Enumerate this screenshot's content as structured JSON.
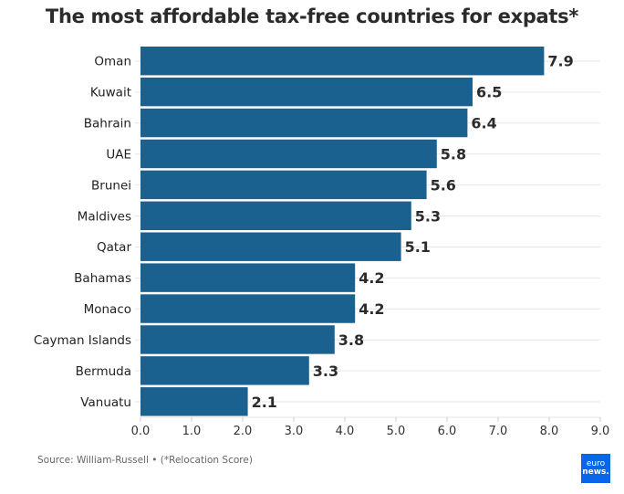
{
  "chart_data": {
    "type": "bar",
    "orientation": "horizontal",
    "title": "The most affordable tax-free countries for expats*",
    "categories": [
      "Oman",
      "Kuwait",
      "Bahrain",
      "UAE",
      "Brunei",
      "Maldives",
      "Qatar",
      "Bahamas",
      "Monaco",
      "Cayman Islands",
      "Bermuda",
      "Vanuatu"
    ],
    "values": [
      7.9,
      6.5,
      6.4,
      5.8,
      5.6,
      5.3,
      5.1,
      4.2,
      4.2,
      3.8,
      3.3,
      2.1
    ],
    "data_labels": [
      "7.9",
      "6.5",
      "6.4",
      "5.8",
      "5.6",
      "5.3",
      "5.1",
      "4.2",
      "4.2",
      "3.8",
      "3.3",
      "2.1"
    ],
    "xlabel": "",
    "ylabel": "",
    "xlim": [
      0,
      9
    ],
    "xticks": [
      "0.0",
      "1.0",
      "2.0",
      "3.0",
      "4.0",
      "5.0",
      "6.0",
      "7.0",
      "8.0",
      "9.0"
    ],
    "grid": true,
    "bar_color": "#1b6190"
  },
  "footer": {
    "source": "Source: William-Russell • (*Relocation Score)",
    "logo_line1": "euro",
    "logo_line2": "news."
  }
}
